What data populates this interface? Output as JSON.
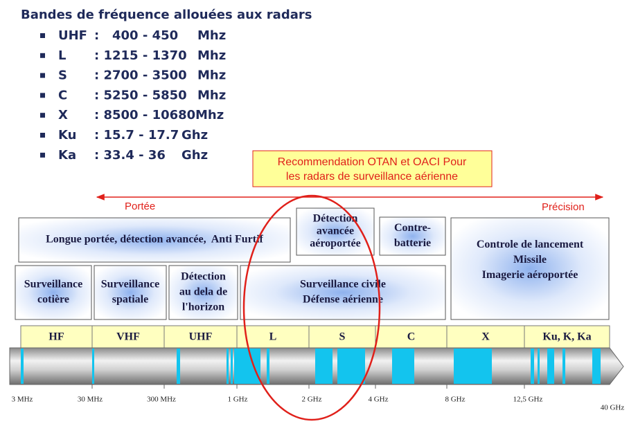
{
  "title": "Bandes de fréquence allouées aux radars",
  "bands": [
    {
      "band": "UHF",
      "range": ":   400 - 450",
      "unit": "Mhz"
    },
    {
      "band": "L",
      "range": ": 1215 - 1370",
      "unit": "Mhz"
    },
    {
      "band": "S",
      "range": ": 2700 - 3500",
      "unit": "Mhz"
    },
    {
      "band": "C",
      "range": ": 5250 - 5850",
      "unit": "Mhz"
    },
    {
      "band": "X",
      "range": ": 8500 - 10680",
      "unit": "Mhz"
    },
    {
      "band": "Ku",
      "range": ": 15.7 - 17.7",
      "unit": "Ghz"
    },
    {
      "band": "Ka",
      "range": ": 33.4 - 36",
      "unit": "Ghz"
    }
  ],
  "callout": {
    "lines": [
      "Recommendation OTAN et OACI Pour",
      "les radars de surveillance aérienne"
    ]
  },
  "arrow": {
    "left": "Portée",
    "right": "Précision"
  },
  "applications": [
    {
      "lines": [
        "Longue portée, détection avancée,  Anti Furtif"
      ]
    },
    {
      "lines": [
        "Détection",
        "avancée",
        "aéroportée"
      ]
    },
    {
      "lines": [
        "Contre-",
        "batterie"
      ]
    },
    {
      "lines": [
        "Controle de lancement",
        "Missile",
        "Imagerie aéroportée"
      ]
    },
    {
      "lines": [
        "Surveillance",
        "cotière"
      ]
    },
    {
      "lines": [
        "Surveillance",
        "spatiale"
      ]
    },
    {
      "lines": [
        "Détection",
        "au dela de",
        "l'horizon"
      ]
    },
    {
      "lines": [
        "Surveillance civile",
        "Défense aérienne"
      ]
    }
  ],
  "spectrum": {
    "bands": [
      "HF",
      "VHF",
      "UHF",
      "L",
      "S",
      "C",
      "X",
      "Ku, K, Ka"
    ],
    "frequencies": [
      "3 MHz",
      "30 MHz",
      "300 MHz",
      "1 GHz",
      "2 GHz",
      "4 GHz",
      "8 GHz",
      "12,5 GHz",
      "40 GHz"
    ]
  }
}
